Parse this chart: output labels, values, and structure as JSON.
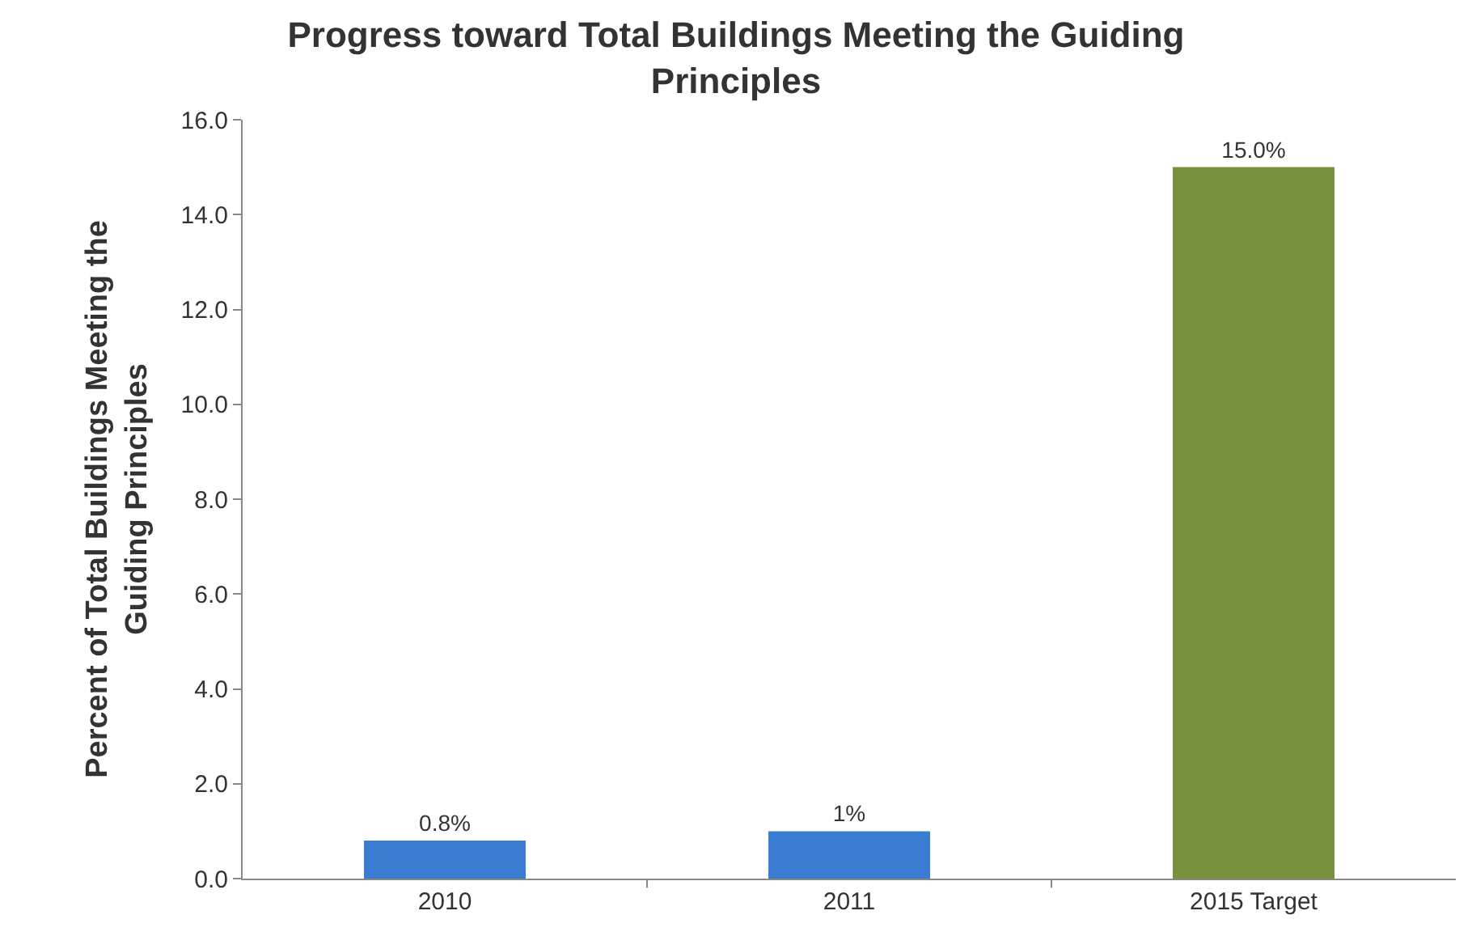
{
  "chart_data": {
    "type": "bar",
    "title": "Progress toward Total Buildings Meeting the Guiding Principles",
    "ylabel": "Percent of Total Buildings Meeting the Guiding Principles",
    "categories": [
      "2010",
      "2011",
      "2015 Target"
    ],
    "values": [
      0.8,
      1,
      15.0
    ],
    "value_labels": [
      "0.8%",
      "1%",
      "15.0%"
    ],
    "colors": [
      "#3a7dd0",
      "#3a7dd0",
      "#76923c"
    ],
    "ylim": [
      0,
      16
    ],
    "yticks": [
      {
        "value": 0,
        "label": "0.0"
      },
      {
        "value": 2,
        "label": "2.0"
      },
      {
        "value": 4,
        "label": "4.0"
      },
      {
        "value": 6,
        "label": "6.0"
      },
      {
        "value": 8,
        "label": "8.0"
      },
      {
        "value": 10,
        "label": "10.0"
      },
      {
        "value": 12,
        "label": "12.0"
      },
      {
        "value": 14,
        "label": "14.0"
      },
      {
        "value": 16,
        "label": "16.0"
      }
    ],
    "legend": false
  }
}
